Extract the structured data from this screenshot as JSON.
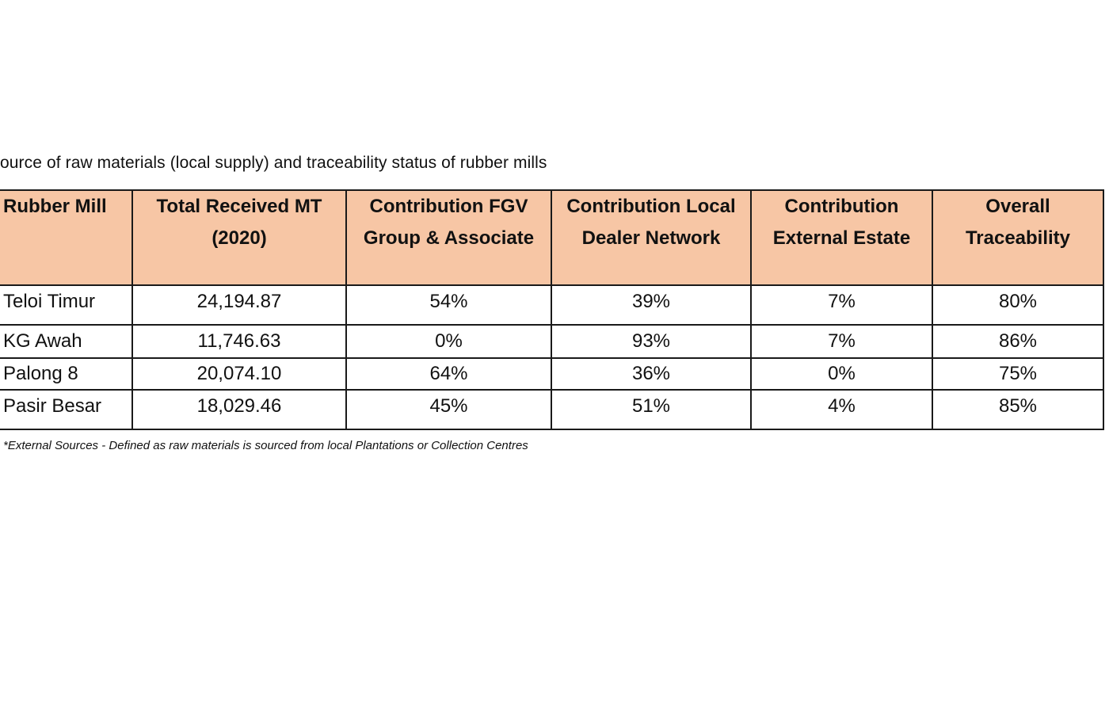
{
  "caption": "ource of raw materials (local supply) and traceability status of rubber mills",
  "table": {
    "headers": [
      "Rubber Mill",
      "Total Received MT (2020)",
      "Contribution FGV Group & Associate",
      "Contribution Local Dealer Network",
      "Contribution External Estate",
      "Overall Traceability"
    ],
    "rows": [
      [
        "Teloi Timur",
        "24,194.87",
        "54%",
        "39%",
        "7%",
        "80%"
      ],
      [
        "KG Awah",
        "11,746.63",
        "0%",
        "93%",
        "7%",
        "86%"
      ],
      [
        "Palong 8",
        "20,074.10",
        "64%",
        "36%",
        "0%",
        "75%"
      ],
      [
        "Pasir Besar",
        "18,029.46",
        "45%",
        "51%",
        "4%",
        "85%"
      ]
    ]
  },
  "footnote": "*External Sources - Defined as raw materials is sourced from local Plantations or Collection Centres",
  "colors": {
    "header_bg": "#f7c6a5",
    "border": "#1a1a1a",
    "text": "#111111"
  }
}
